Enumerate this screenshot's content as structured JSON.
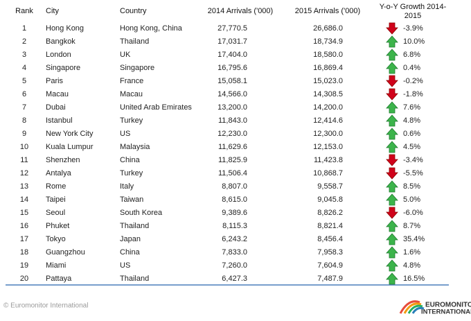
{
  "header": {
    "columns": [
      "Rank",
      "City",
      "Country",
      "2014 Arrivals ('000)",
      "2015 Arrivals ('000)",
      "Y-o-Y Growth 2014-2015"
    ]
  },
  "table": {
    "rows": [
      [
        "1",
        "Hong Kong",
        "Hong Kong, China",
        "27,770.5",
        "26,686.0",
        "-3.9%"
      ],
      [
        "2",
        "Bangkok",
        "Thailand",
        "17,031.7",
        "18,734.9",
        "10.0%"
      ],
      [
        "3",
        "London",
        "UK",
        "17,404.0",
        "18,580.0",
        "6.8%"
      ],
      [
        "4",
        "Singapore",
        "Singapore",
        "16,795.6",
        "16,869.4",
        "0.4%"
      ],
      [
        "5",
        "Paris",
        "France",
        "15,058.1",
        "15,023.0",
        "-0.2%"
      ],
      [
        "6",
        "Macau",
        "Macau",
        "14,566.0",
        "14,308.5",
        "-1.8%"
      ],
      [
        "7",
        "Dubai",
        "United Arab Emirates",
        "13,200.0",
        "14,200.0",
        "7.6%"
      ],
      [
        "8",
        "Istanbul",
        "Turkey",
        "11,843.0",
        "12,414.6",
        "4.8%"
      ],
      [
        "9",
        "New York City",
        "US",
        "12,230.0",
        "12,300.0",
        "0.6%"
      ],
      [
        "10",
        "Kuala Lumpur",
        "Malaysia",
        "11,629.6",
        "12,153.0",
        "4.5%"
      ],
      [
        "11",
        "Shenzhen",
        "China",
        "11,825.9",
        "11,423.8",
        "-3.4%"
      ],
      [
        "12",
        "Antalya",
        "Turkey",
        "11,506.4",
        "10,868.7",
        "-5.5%"
      ],
      [
        "13",
        "Rome",
        "Italy",
        "8,807.0",
        "9,558.7",
        "8.5%"
      ],
      [
        "14",
        "Taipei",
        "Taiwan",
        "8,615.0",
        "9,045.8",
        "5.0%"
      ],
      [
        "15",
        "Seoul",
        "South Korea",
        "9,389.6",
        "8,826.2",
        "-6.0%"
      ],
      [
        "16",
        "Phuket",
        "Thailand",
        "8,115.3",
        "8,821.4",
        "8.7%"
      ],
      [
        "17",
        "Tokyo",
        "Japan",
        "6,243.2",
        "8,456.4",
        "35.4%"
      ],
      [
        "18",
        "Guangzhou",
        "China",
        "7,833.0",
        "7,958.3",
        "1.6%"
      ],
      [
        "19",
        "Miami",
        "US",
        "7,260.0",
        "7,604.9",
        "4.8%"
      ],
      [
        "20",
        "Pattaya",
        "Thailand",
        "6,427.3",
        "7,487.9",
        "16.5%"
      ]
    ]
  },
  "footer": {
    "copyright": "© Euromonitor International",
    "logo": [
      "EUROMONITOR",
      "INTERNATIONAL"
    ]
  }
}
